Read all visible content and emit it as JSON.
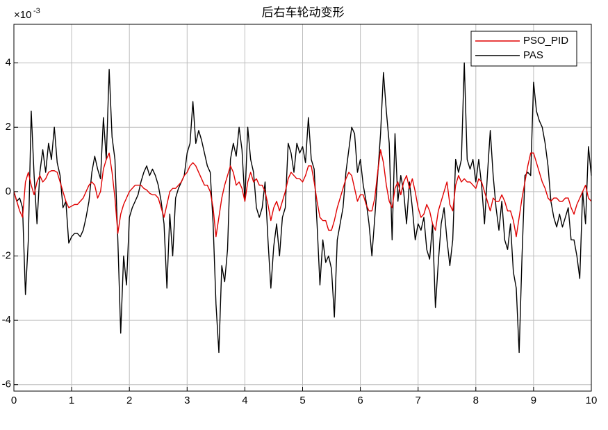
{
  "chart_data": {
    "type": "line",
    "title": "后右车轮动变形",
    "multiplier_base": "×10",
    "multiplier_exponent": "-3",
    "x": [
      0,
      0.05,
      0.1,
      0.15,
      0.2,
      0.25,
      0.3,
      0.35,
      0.4,
      0.45,
      0.5,
      0.55,
      0.6,
      0.65,
      0.7,
      0.75,
      0.8,
      0.85,
      0.9,
      0.95,
      1,
      1.05,
      1.1,
      1.15,
      1.2,
      1.25,
      1.3,
      1.35,
      1.4,
      1.45,
      1.5,
      1.55,
      1.6,
      1.65,
      1.7,
      1.75,
      1.8,
      1.85,
      1.9,
      1.95,
      2,
      2.05,
      2.1,
      2.15,
      2.2,
      2.25,
      2.3,
      2.35,
      2.4,
      2.45,
      2.5,
      2.55,
      2.6,
      2.65,
      2.7,
      2.75,
      2.8,
      2.85,
      2.9,
      2.95,
      3,
      3.05,
      3.1,
      3.15,
      3.2,
      3.25,
      3.3,
      3.35,
      3.4,
      3.45,
      3.5,
      3.55,
      3.6,
      3.65,
      3.7,
      3.75,
      3.8,
      3.85,
      3.9,
      3.95,
      4,
      4.05,
      4.1,
      4.15,
      4.2,
      4.25,
      4.3,
      4.35,
      4.4,
      4.45,
      4.5,
      4.55,
      4.6,
      4.65,
      4.7,
      4.75,
      4.8,
      4.85,
      4.9,
      4.95,
      5,
      5.05,
      5.1,
      5.15,
      5.2,
      5.25,
      5.3,
      5.35,
      5.4,
      5.45,
      5.5,
      5.55,
      5.6,
      5.65,
      5.7,
      5.75,
      5.8,
      5.85,
      5.9,
      5.95,
      6,
      6.05,
      6.1,
      6.15,
      6.2,
      6.25,
      6.3,
      6.35,
      6.4,
      6.45,
      6.5,
      6.55,
      6.6,
      6.65,
      6.7,
      6.75,
      6.8,
      6.85,
      6.9,
      6.95,
      7,
      7.05,
      7.1,
      7.15,
      7.2,
      7.25,
      7.3,
      7.35,
      7.4,
      7.45,
      7.5,
      7.55,
      7.6,
      7.65,
      7.7,
      7.75,
      7.8,
      7.85,
      7.9,
      7.95,
      8,
      8.05,
      8.1,
      8.15,
      8.2,
      8.25,
      8.3,
      8.35,
      8.4,
      8.45,
      8.5,
      8.55,
      8.6,
      8.65,
      8.7,
      8.75,
      8.8,
      8.85,
      8.9,
      8.95,
      9,
      9.05,
      9.1,
      9.15,
      9.2,
      9.25,
      9.3,
      9.35,
      9.4,
      9.45,
      9.5,
      9.55,
      9.6,
      9.65,
      9.7,
      9.75,
      9.8,
      9.85,
      9.9,
      9.95,
      10
    ],
    "series": [
      {
        "name": "PSO_PID",
        "color": "#e00000",
        "values": [
          0,
          -0.3,
          -0.6,
          -0.8,
          0.3,
          0.6,
          0.2,
          -0.1,
          0.3,
          0.5,
          0.3,
          0.4,
          0.6,
          0.65,
          0.65,
          0.6,
          0.3,
          0,
          -0.3,
          -0.5,
          -0.45,
          -0.4,
          -0.4,
          -0.3,
          -0.2,
          0,
          0.2,
          0.3,
          0.2,
          -0.2,
          0,
          0.7,
          1.0,
          1.2,
          0.6,
          -0.2,
          -1.3,
          -0.7,
          -0.4,
          -0.2,
          0,
          0.1,
          0.2,
          0.2,
          0.2,
          0.1,
          0.05,
          -0.05,
          -0.1,
          -0.1,
          -0.2,
          -0.5,
          -0.8,
          -0.4,
          0,
          0.1,
          0.1,
          0.2,
          0.3,
          0.5,
          0.6,
          0.8,
          0.9,
          0.8,
          0.6,
          0.4,
          0.2,
          0.2,
          0,
          -0.5,
          -1.4,
          -0.8,
          -0.2,
          0.2,
          0.5,
          0.8,
          0.6,
          0.2,
          0.3,
          0.1,
          -0.3,
          0.3,
          0.6,
          0.3,
          0.4,
          0.2,
          0.2,
          0,
          -0.4,
          -0.9,
          -0.5,
          -0.3,
          -0.6,
          -0.3,
          0,
          0.4,
          0.6,
          0.5,
          0.4,
          0.4,
          0.3,
          0.5,
          0.8,
          0.8,
          0.3,
          -0.3,
          -0.8,
          -0.9,
          -0.9,
          -1.2,
          -1.2,
          -0.9,
          -0.5,
          -0.2,
          0.1,
          0.4,
          0.6,
          0.5,
          0.1,
          -0.3,
          -0.1,
          -0.1,
          -0.4,
          -0.6,
          -0.6,
          -0.2,
          0.6,
          1.3,
          0.9,
          0.2,
          -0.3,
          -0.5,
          0.1,
          0.3,
          -0.1,
          0.3,
          0.5,
          0.1,
          0.4,
          0,
          -0.5,
          -0.8,
          -0.7,
          -0.4,
          -0.6,
          -1.0,
          -1.2,
          -0.6,
          -0.3,
          0,
          0.3,
          -0.4,
          -0.6,
          0.2,
          0.5,
          0.3,
          0.4,
          0.3,
          0.3,
          0.2,
          0.1,
          0.4,
          0.3,
          0,
          -0.3,
          -0.6,
          -0.2,
          -0.3,
          -0.3,
          -0.1,
          -0.3,
          -0.6,
          -0.6,
          -0.9,
          -1.4,
          -0.8,
          -0.2,
          0.3,
          0.8,
          1.2,
          1.2,
          0.9,
          0.6,
          0.3,
          0.1,
          -0.2,
          -0.3,
          -0.2,
          -0.2,
          -0.3,
          -0.3,
          -0.2,
          -0.2,
          -0.5,
          -0.7,
          -0.4,
          -0.2,
          0,
          0.2,
          -0.2,
          -0.3
        ]
      },
      {
        "name": "PAS",
        "color": "#000000",
        "values": [
          0,
          -0.3,
          -0.2,
          -0.5,
          -3.2,
          -1.5,
          2.5,
          0.5,
          -1.0,
          0.6,
          1.3,
          0.6,
          1.5,
          1.0,
          2.0,
          0.9,
          0.5,
          -0.5,
          -0.3,
          -1.6,
          -1.4,
          -1.3,
          -1.3,
          -1.4,
          -1.2,
          -0.8,
          -0.3,
          0.6,
          1.1,
          0.7,
          0.4,
          2.3,
          1.0,
          3.8,
          1.7,
          1.0,
          -1.5,
          -4.4,
          -2.0,
          -2.9,
          -0.8,
          -0.5,
          -0.3,
          -0.1,
          0.3,
          0.6,
          0.8,
          0.5,
          0.7,
          0.5,
          0.2,
          -0.3,
          -1.0,
          -3.0,
          -0.7,
          -2.0,
          -0.2,
          0.1,
          0.3,
          0.5,
          1.2,
          1.5,
          2.8,
          1.5,
          1.9,
          1.6,
          1.2,
          0.8,
          0.6,
          -1.0,
          -3.5,
          -5.0,
          -2.3,
          -2.8,
          -1.8,
          1.0,
          1.5,
          1.1,
          2.0,
          1.3,
          -0.3,
          2.0,
          1.0,
          0.6,
          -0.5,
          -0.8,
          -0.5,
          0.3,
          -1.5,
          -3.0,
          -1.7,
          -1.0,
          -2.0,
          -0.8,
          -0.5,
          1.5,
          1.2,
          0.6,
          1.5,
          1.2,
          1.4,
          0.9,
          2.3,
          1.0,
          0.7,
          -1.0,
          -2.9,
          -1.5,
          -2.2,
          -2.0,
          -2.4,
          -3.9,
          -1.5,
          -1.0,
          -0.5,
          0.6,
          1.3,
          2.0,
          1.8,
          0.6,
          1.0,
          0.2,
          -0.3,
          -1.0,
          -2.0,
          -0.8,
          0.5,
          1.8,
          3.7,
          2.5,
          1.5,
          -1.5,
          1.8,
          -0.3,
          0.5,
          0,
          -1.0,
          0.3,
          -0.5,
          -1.5,
          -1.0,
          -1.2,
          -0.8,
          -1.8,
          -2.1,
          -1.0,
          -3.6,
          -2.2,
          -1.0,
          -0.5,
          -1.5,
          -2.3,
          -1.5,
          1.0,
          0.6,
          1.0,
          4.0,
          1.0,
          0.7,
          1.0,
          0.3,
          1.0,
          0.2,
          -1.0,
          0.5,
          1.9,
          0.5,
          -0.5,
          -1.2,
          -0.3,
          -1.5,
          -1.8,
          -1.0,
          -2.5,
          -3.0,
          -5.0,
          -2.0,
          0.5,
          0.6,
          0.5,
          3.4,
          2.5,
          2.2,
          2.0,
          1.5,
          0.8,
          -0.3,
          -0.8,
          -1.1,
          -0.7,
          -1.1,
          -0.8,
          -0.5,
          -1.5,
          -1.5,
          -2.0,
          -2.7,
          0,
          -1.0,
          1.4,
          0.5
        ]
      }
    ],
    "xlim": [
      0,
      10
    ],
    "xticks": [
      0,
      1,
      2,
      3,
      4,
      5,
      6,
      7,
      8,
      9,
      10
    ],
    "ylim": [
      -6.2,
      5.2
    ],
    "yticks": [
      -6,
      -4,
      -2,
      0,
      2,
      4
    ],
    "grid": true,
    "legend": "top-right"
  }
}
